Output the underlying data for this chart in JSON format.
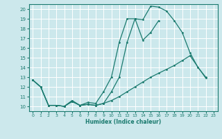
{
  "title": "",
  "xlabel": "Humidex (Indice chaleur)",
  "bg_color": "#cce8ec",
  "grid_color": "#ffffff",
  "line_color": "#1a7a6e",
  "xlim": [
    -0.5,
    23.5
  ],
  "ylim": [
    9.5,
    20.5
  ],
  "yticks": [
    10,
    11,
    12,
    13,
    14,
    15,
    16,
    17,
    18,
    19,
    20
  ],
  "xticks": [
    0,
    1,
    2,
    3,
    4,
    5,
    6,
    7,
    8,
    9,
    10,
    11,
    12,
    13,
    14,
    15,
    16,
    17,
    18,
    19,
    20,
    21,
    22,
    23
  ],
  "series1_x": [
    0,
    1,
    2,
    3,
    4,
    5,
    6,
    7,
    8,
    9,
    10,
    11,
    12,
    13,
    14,
    15,
    16,
    17,
    18,
    19,
    20,
    21,
    22
  ],
  "series1_y": [
    12.7,
    12.0,
    10.1,
    10.1,
    10.0,
    10.6,
    10.1,
    10.4,
    10.3,
    11.5,
    13.0,
    16.6,
    19.0,
    19.0,
    18.9,
    20.3,
    20.2,
    19.8,
    18.8,
    17.6,
    15.5,
    14.0,
    13.0
  ],
  "series2_x": [
    0,
    1,
    2,
    3,
    4,
    5,
    6,
    7,
    8,
    9,
    10,
    11,
    12,
    13,
    14,
    15,
    16
  ],
  "series2_y": [
    12.7,
    12.0,
    10.1,
    10.1,
    10.0,
    10.5,
    10.1,
    10.2,
    10.1,
    10.3,
    11.5,
    13.0,
    16.6,
    19.0,
    16.8,
    17.6,
    18.8
  ],
  "series3_x": [
    0,
    1,
    2,
    3,
    4,
    5,
    6,
    7,
    8,
    9,
    10,
    11,
    12,
    13,
    14,
    15,
    16,
    17,
    18,
    19,
    20,
    22
  ],
  "series3_y": [
    12.7,
    12.0,
    10.1,
    10.1,
    10.0,
    10.5,
    10.1,
    10.2,
    10.1,
    10.3,
    10.6,
    11.0,
    11.5,
    12.0,
    12.5,
    13.0,
    13.4,
    13.8,
    14.2,
    14.7,
    15.2,
    12.9
  ]
}
